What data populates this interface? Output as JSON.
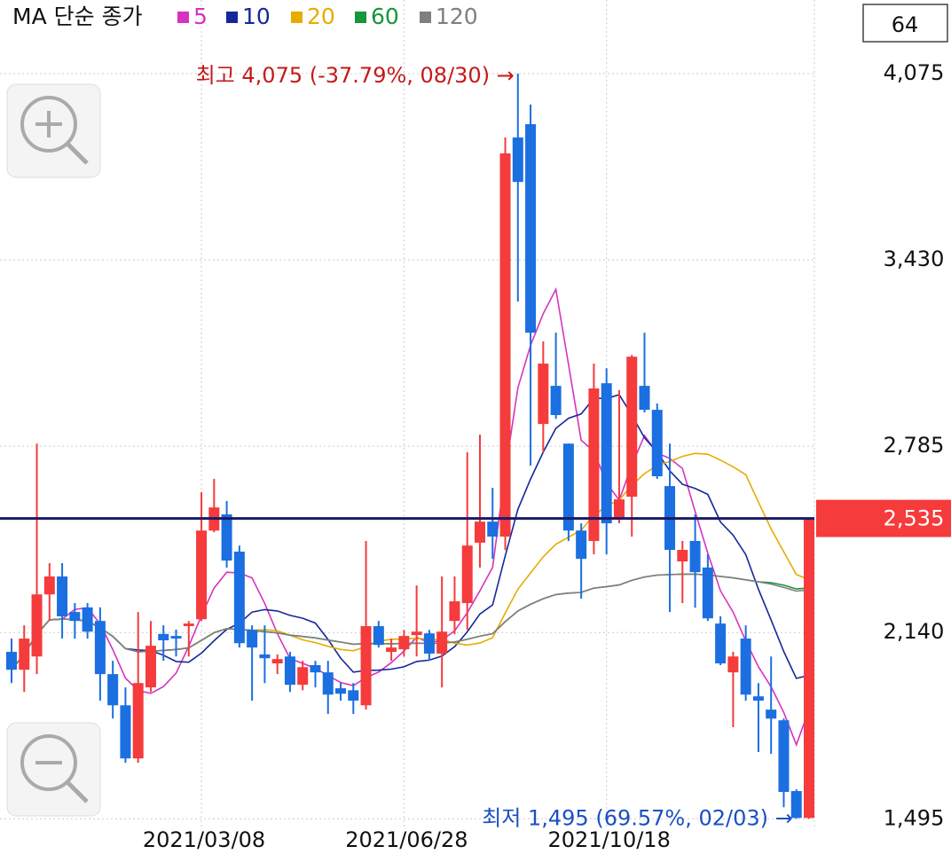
{
  "chart_data": {
    "type": "candlestick",
    "legend_title": "MA 단순 종가",
    "moving_averages": [
      {
        "period": 5,
        "color": "#d633c0"
      },
      {
        "period": 10,
        "color": "#14289a"
      },
      {
        "period": 20,
        "color": "#e6ac00"
      },
      {
        "period": 60,
        "color": "#17963a"
      },
      {
        "period": 120,
        "color": "#7f7f7f"
      }
    ],
    "counter": "64",
    "categories": [
      null,
      null,
      null,
      null,
      null,
      null,
      null,
      null,
      null,
      null,
      null,
      null,
      null,
      null,
      null,
      "2021/03/08",
      null,
      null,
      null,
      null,
      null,
      null,
      null,
      null,
      null,
      null,
      null,
      null,
      null,
      null,
      null,
      "2021/06/28",
      null,
      null,
      null,
      null,
      null,
      null,
      null,
      null,
      null,
      null,
      null,
      null,
      null,
      null,
      null,
      "2021/10/18",
      null,
      null,
      null,
      null,
      null,
      null,
      null,
      null,
      null,
      null,
      null,
      null,
      null,
      null,
      null,
      null
    ],
    "open": [
      2073,
      2011,
      2057,
      2272,
      2334,
      2211,
      2227,
      2180,
      1996,
      1888,
      1704,
      1950,
      2135,
      2128,
      2162,
      2186,
      2493,
      2549,
      2420,
      2149,
      2064,
      2033,
      2057,
      1959,
      2027,
      2002,
      1947,
      1940,
      1888,
      2162,
      2073,
      2082,
      2131,
      2137,
      2067,
      2180,
      2242,
      2451,
      2524,
      2472,
      3854,
      3900,
      2862,
      2994,
      2794,
      2493,
      2457,
      3003,
      2533,
      2610,
      2994,
      2911,
      2647,
      2386,
      2457,
      2365,
      2171,
      2002,
      2119,
      1919,
      1873,
      1836,
      1591,
      1498
    ],
    "high": [
      2119,
      2165,
      2794,
      2380,
      2380,
      2242,
      2242,
      2227,
      2042,
      1950,
      2211,
      2180,
      2165,
      2150,
      2180,
      2626,
      2672,
      2595,
      2441,
      2165,
      2165,
      2064,
      2073,
      2042,
      2042,
      2042,
      1965,
      1965,
      2457,
      2180,
      2119,
      2149,
      2303,
      2149,
      2334,
      2334,
      2764,
      2825,
      2641,
      3854,
      4075,
      3968,
      3148,
      3178,
      2794,
      2518,
      3071,
      3055,
      2979,
      3101,
      3178,
      2933,
      2794,
      2457,
      2549,
      2411,
      2196,
      2073,
      2165,
      1965,
      2057,
      1842,
      1597,
      2535
    ],
    "low": [
      1965,
      1934,
      1996,
      2180,
      2119,
      2119,
      2119,
      1904,
      1842,
      1689,
      1689,
      1934,
      2042,
      2057,
      2057,
      2180,
      2487,
      2365,
      2088,
      1904,
      1965,
      1996,
      1934,
      1940,
      1950,
      1858,
      1904,
      1858,
      1873,
      2088,
      2042,
      2057,
      2057,
      2042,
      1950,
      2134,
      2149,
      2365,
      2395,
      2426,
      3286,
      2718,
      2764,
      2880,
      2457,
      2257,
      2411,
      2411,
      2518,
      2472,
      2902,
      2672,
      2211,
      2242,
      2226,
      2180,
      2027,
      1812,
      1904,
      1726,
      1720,
      1535,
      1495,
      1495
    ],
    "close": [
      2011,
      2119,
      2272,
      2334,
      2196,
      2180,
      2143,
      1996,
      1888,
      1704,
      1965,
      2094,
      2113,
      2119,
      2171,
      2493,
      2573,
      2389,
      2103,
      2088,
      2051,
      2048,
      1959,
      2020,
      2002,
      1925,
      1928,
      1904,
      2162,
      2097,
      2088,
      2128,
      2143,
      2067,
      2143,
      2248,
      2441,
      2524,
      2472,
      3799,
      3700,
      3178,
      3071,
      2893,
      2493,
      2395,
      2985,
      2518,
      2601,
      3095,
      2911,
      2681,
      2426,
      2426,
      2349,
      2189,
      2033,
      2057,
      1925,
      1904,
      1842,
      1588,
      1498,
      2535
    ],
    "up_color": "#f53b3b",
    "down_color": "#1b6fe0",
    "ylim": [
      1459,
      4330
    ],
    "yticks": [
      {
        "value": 1495,
        "label": "1,495"
      },
      {
        "value": 2140,
        "label": "2,140"
      },
      {
        "value": 2785,
        "label": "2,785"
      },
      {
        "value": 3430,
        "label": "3,430"
      },
      {
        "value": 4075,
        "label": "4,075"
      }
    ],
    "price_line": {
      "value": 2535,
      "label": "2,535",
      "color": "#1a1a66"
    },
    "annotations": [
      {
        "text": "최고 4,075 (-37.79%, 08/30) →",
        "index": 40,
        "color": "#c41a1a"
      },
      {
        "text": "최저 1,495 (69.57%, 02/03) →",
        "index": 62,
        "color": "#1a4fc4"
      }
    ],
    "grid": true
  }
}
